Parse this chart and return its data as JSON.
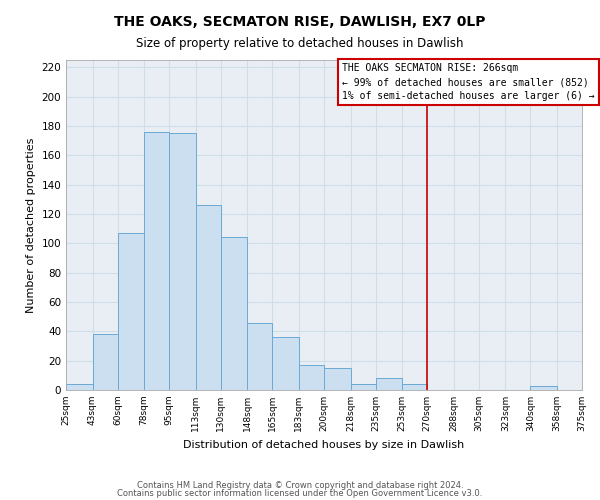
{
  "title": "THE OAKS, SECMATON RISE, DAWLISH, EX7 0LP",
  "subtitle": "Size of property relative to detached houses in Dawlish",
  "xlabel": "Distribution of detached houses by size in Dawlish",
  "ylabel": "Number of detached properties",
  "bar_edges": [
    25,
    43,
    60,
    78,
    95,
    113,
    130,
    148,
    165,
    183,
    200,
    218,
    235,
    253,
    270,
    288,
    305,
    323,
    340,
    358,
    375
  ],
  "bar_heights": [
    4,
    38,
    107,
    176,
    175,
    126,
    104,
    46,
    36,
    17,
    15,
    4,
    8,
    4,
    0,
    0,
    0,
    0,
    3,
    0
  ],
  "bar_color": "#ccdff0",
  "bar_edge_color": "#6aaad4",
  "grid_color": "#d0dce8",
  "vline_x": 270,
  "vline_color": "#cc0000",
  "ylim": [
    0,
    225
  ],
  "yticks": [
    0,
    20,
    40,
    60,
    80,
    100,
    120,
    140,
    160,
    180,
    200,
    220
  ],
  "annotation_title": "THE OAKS SECMATON RISE: 266sqm",
  "annotation_line1": "← 99% of detached houses are smaller (852)",
  "annotation_line2": "1% of semi-detached houses are larger (6) →",
  "footer_line1": "Contains HM Land Registry data © Crown copyright and database right 2024.",
  "footer_line2": "Contains public sector information licensed under the Open Government Licence v3.0.",
  "tick_labels": [
    "25sqm",
    "43sqm",
    "60sqm",
    "78sqm",
    "95sqm",
    "113sqm",
    "130sqm",
    "148sqm",
    "165sqm",
    "183sqm",
    "200sqm",
    "218sqm",
    "235sqm",
    "253sqm",
    "270sqm",
    "288sqm",
    "305sqm",
    "323sqm",
    "340sqm",
    "358sqm",
    "375sqm"
  ],
  "background_color": "#e8eef4"
}
